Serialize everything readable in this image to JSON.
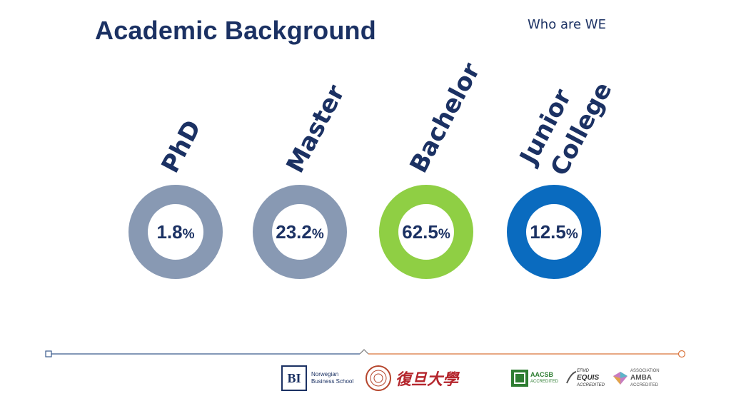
{
  "header": {
    "title": "Academic Background",
    "subtitle": "Who are WE"
  },
  "chart_data": {
    "type": "donut",
    "categories": [
      "PhD",
      "Master",
      "Bachelor",
      "Junior College"
    ],
    "values": [
      1.8,
      23.2,
      62.5,
      12.5
    ],
    "unit": "%",
    "colors": [
      "#8899b3",
      "#8899b3",
      "#8fcf44",
      "#0a6bbf"
    ]
  },
  "donuts": [
    {
      "label_lines": [
        "PhD"
      ],
      "value": "1.8",
      "unit": "%",
      "color": "#8899b3"
    },
    {
      "label_lines": [
        "Master"
      ],
      "value": "23.2",
      "unit": "%",
      "color": "#8899b3"
    },
    {
      "label_lines": [
        "Bachelor"
      ],
      "value": "62.5",
      "unit": "%",
      "color": "#8fcf44"
    },
    {
      "label_lines": [
        "Junior",
        "College"
      ],
      "value": "12.5",
      "unit": "%",
      "color": "#0a6bbf"
    }
  ],
  "footer": {
    "bi_logo": "BI",
    "bi_name_line1": "Norwegian",
    "bi_name_line2": "Business School",
    "fudan_name": "復旦大學",
    "aacsb": "AACSB",
    "aacsb_sub": "ACCREDITED",
    "efmd": "EFMD",
    "equis": "EQUIS",
    "equis_sub": "ACCREDITED",
    "amba": "AMBA",
    "amba_top": "ASSOCIATION",
    "amba_sub": "ACCREDITED"
  },
  "colors": {
    "navy": "#1b3163",
    "timeline_left": "#3a5a8c",
    "timeline_right": "#d9733a"
  }
}
